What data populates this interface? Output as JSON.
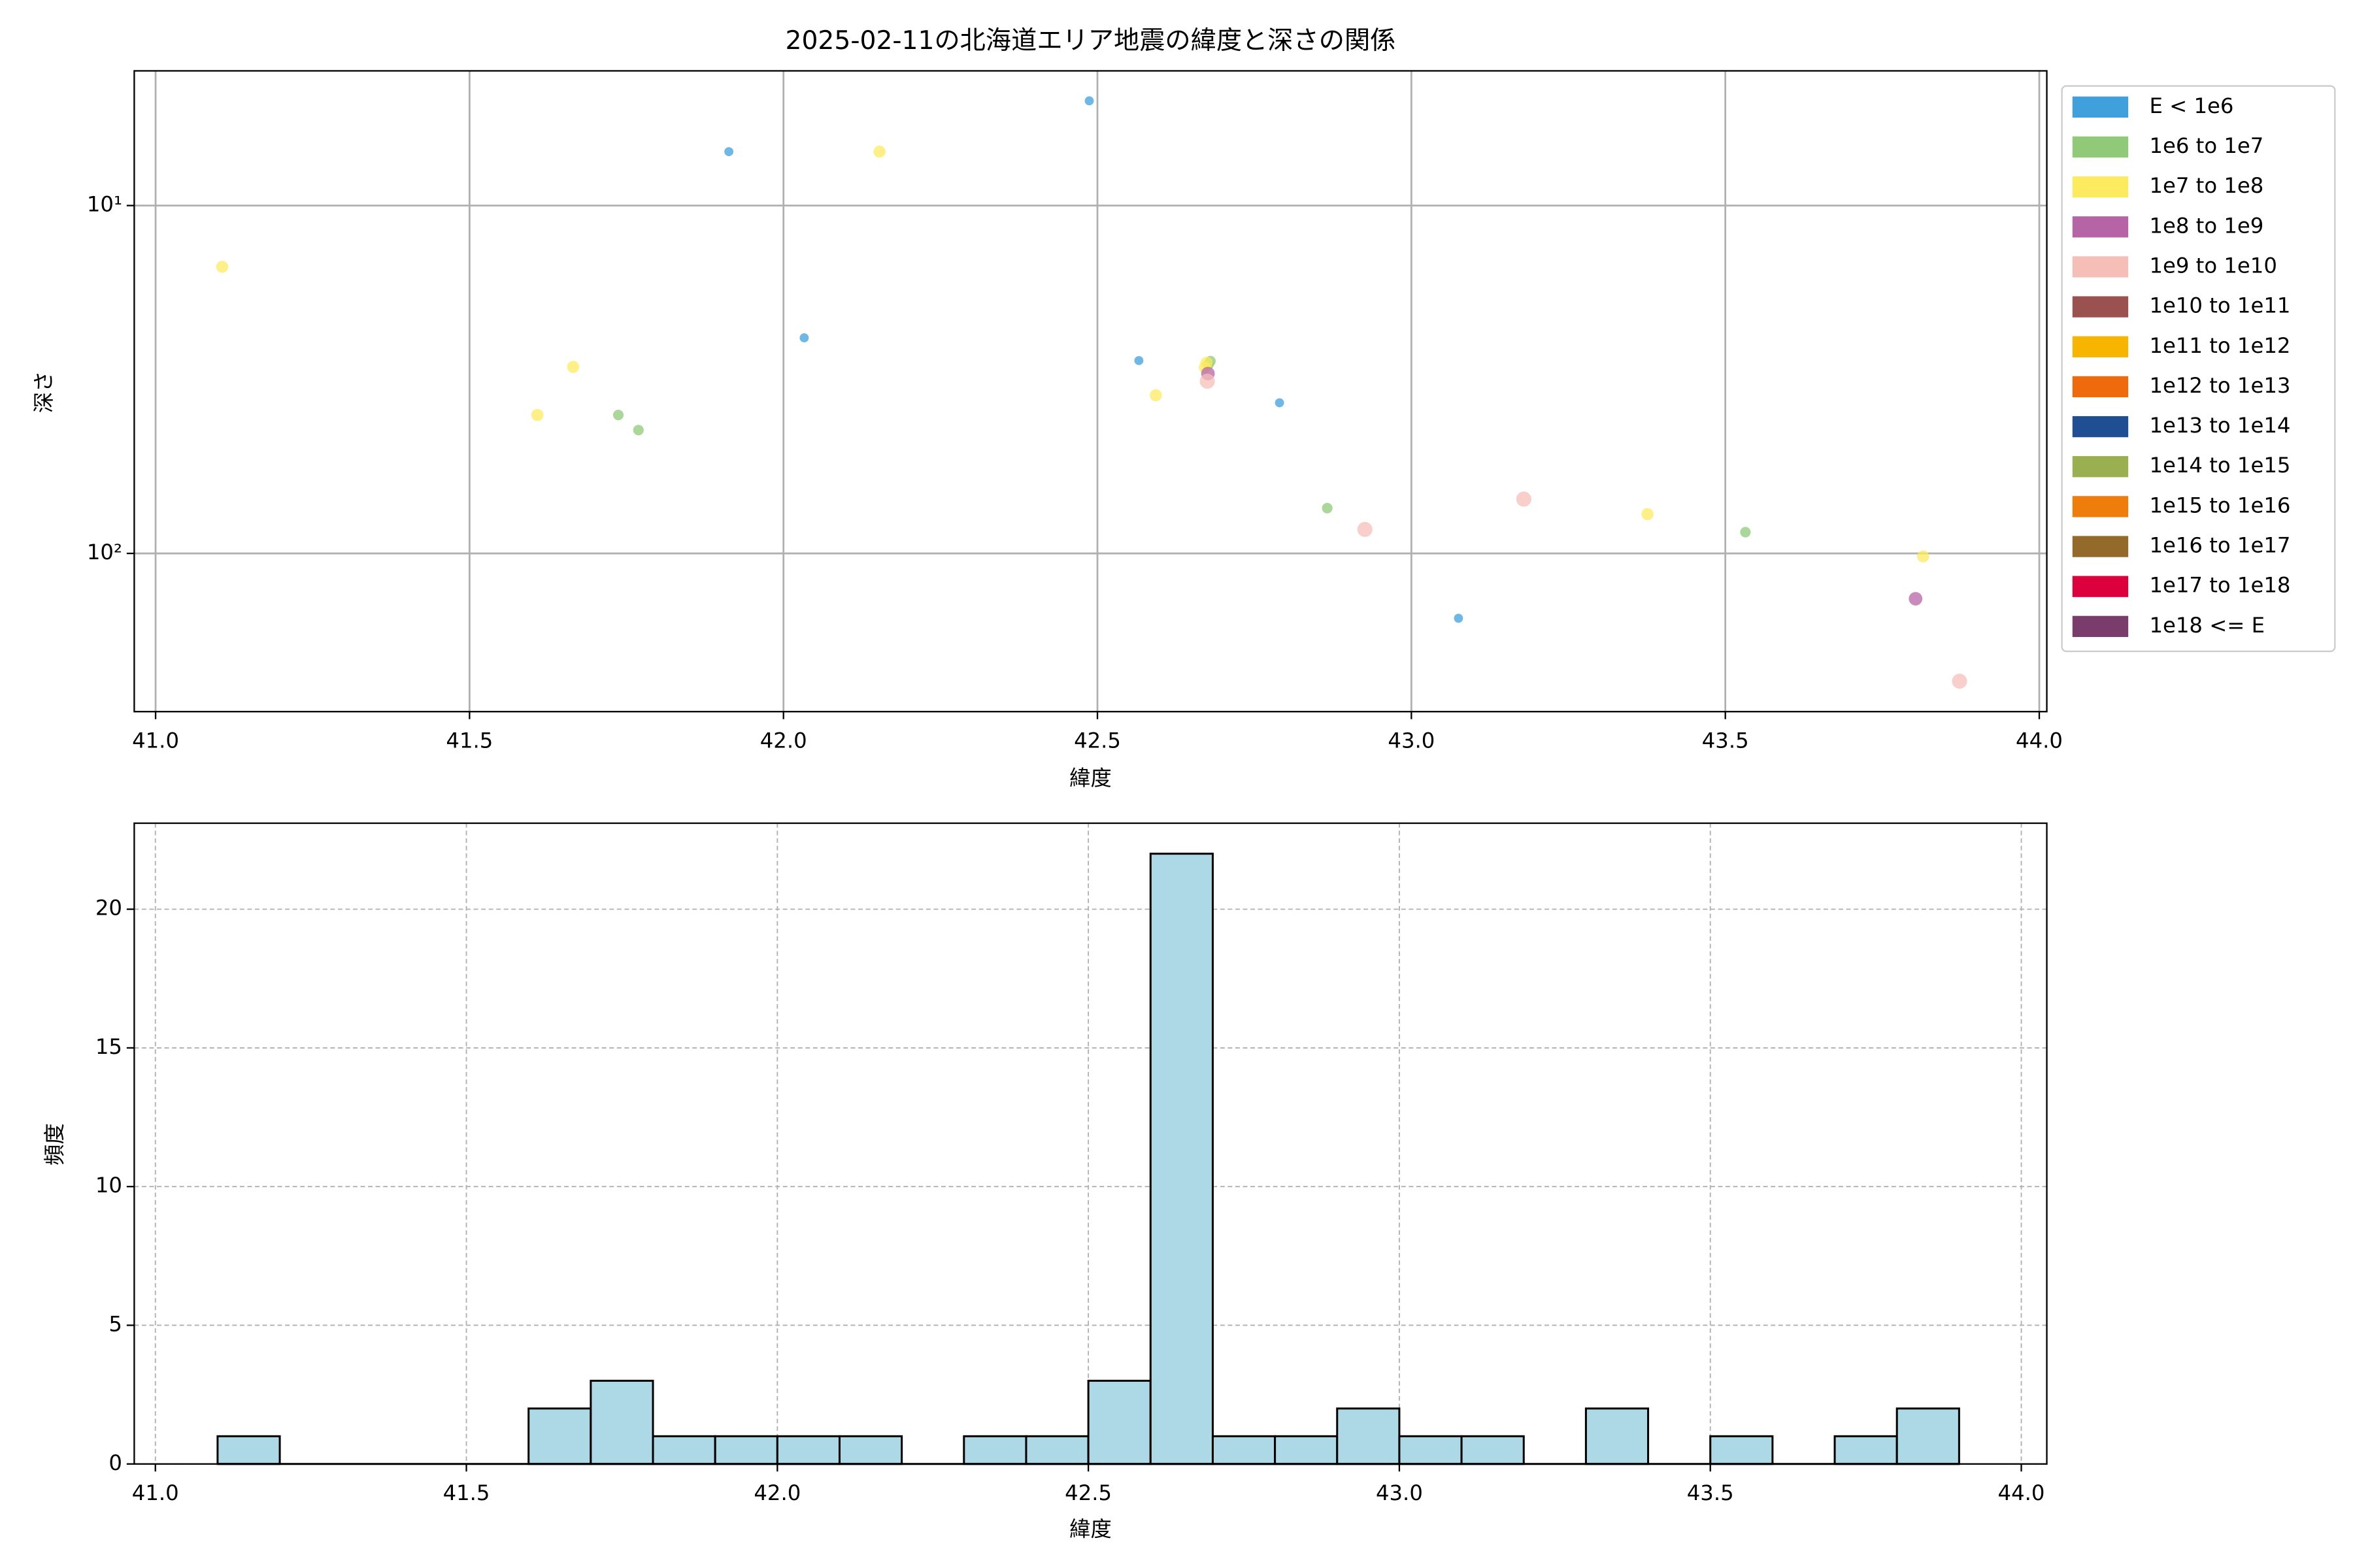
{
  "chart_data": [
    {
      "type": "scatter",
      "title": "2025-02-11の北海道エリア地震の緯度と深さの関係",
      "xlabel": "緯度",
      "ylabel": "深さ",
      "xlim": [
        40.966,
        44.012
      ],
      "xticks": [
        {
          "value": 41,
          "label": "41.0"
        },
        {
          "value": 41.5,
          "label": "41.5"
        },
        {
          "value": 42,
          "label": "42.0"
        },
        {
          "value": 42.5,
          "label": "42.5"
        },
        {
          "value": 43,
          "label": "43.0"
        },
        {
          "value": 43.5,
          "label": "43.5"
        },
        {
          "value": 44,
          "label": "44.0"
        }
      ],
      "ylim": [
        4.1,
        285
      ],
      "y_inverted": true,
      "log_y": true,
      "yticks": [
        {
          "value": 10,
          "label": "10¹"
        },
        {
          "value": 100,
          "label": "10²"
        }
      ],
      "grid": true,
      "legend": "outside right",
      "series": [
        {
          "name": "E < 1e6",
          "color": "#3fa0dc",
          "x": [
            41.913,
            42.487,
            42.033,
            42.566,
            42.79,
            43.075
          ],
          "values": [
            7.0,
            5.0,
            24.0,
            27.9,
            36.9,
            153.6
          ]
        },
        {
          "name": "1e6 to 1e7",
          "color": "#90c978",
          "x": [
            41.737,
            41.769,
            42.866,
            43.532,
            42.68,
            42.677
          ],
          "values": [
            40.0,
            44.2,
            74.1,
            86.9,
            28.0,
            28.6
          ]
        },
        {
          "name": "1e7 to 1e8",
          "color": "#fdeb5f",
          "x": [
            41.106,
            42.153,
            41.665,
            41.608,
            42.593,
            43.376,
            43.815,
            42.671,
            42.674
          ],
          "values": [
            15.0,
            7.0,
            29.1,
            40.0,
            35.1,
            77.1,
            102,
            29.2,
            28.3
          ]
        },
        {
          "name": "1e8 to 1e9",
          "color": "#b764a6",
          "x": [
            43.803,
            42.676
          ],
          "values": [
            135,
            30.4
          ]
        },
        {
          "name": "1e9 to 1e10",
          "color": "#f5bfb8",
          "x": [
            42.926,
            43.179,
            43.873,
            42.675
          ],
          "values": [
            85.3,
            69.8,
            233,
            32.0
          ]
        },
        {
          "name": "1e10 to 1e11",
          "color": "#9a5150",
          "x": [],
          "values": []
        },
        {
          "name": "1e11 to 1e12",
          "color": "#f7b500",
          "x": [],
          "values": []
        },
        {
          "name": "1e12 to 1e13",
          "color": "#ee6a0c",
          "x": [],
          "values": []
        },
        {
          "name": "1e13 to 1e14",
          "color": "#1f4e93",
          "x": [],
          "values": []
        },
        {
          "name": "1e14 to 1e15",
          "color": "#9aaf50",
          "x": [],
          "values": []
        },
        {
          "name": "1e15 to 1e16",
          "color": "#ee7d0c",
          "x": [],
          "values": []
        },
        {
          "name": "1e16 to 1e17",
          "color": "#936a2a",
          "x": [],
          "values": []
        },
        {
          "name": "1e17 to 1e18",
          "color": "#dc003c",
          "x": [],
          "values": []
        },
        {
          "name": "1e18 <= E",
          "color": "#7a3d6b",
          "x": [],
          "values": []
        }
      ]
    },
    {
      "type": "histogram",
      "xlabel": "緯度",
      "ylabel": "頻度",
      "color": "#add8e6",
      "bins": [
        41.1,
        41.2,
        41.3,
        41.4,
        41.5,
        41.6,
        41.7,
        41.8,
        41.9,
        42.0,
        42.1,
        42.2,
        42.3,
        42.4,
        42.5,
        42.6,
        42.7,
        42.8,
        42.9,
        43.0,
        43.1,
        43.2,
        43.3,
        43.4,
        43.5,
        43.6,
        43.7,
        43.8,
        43.9
      ],
      "values": [
        1,
        0,
        0,
        0,
        0,
        2,
        3,
        1,
        1,
        1,
        1,
        0,
        1,
        1,
        3,
        22,
        1,
        1,
        2,
        1,
        1,
        0,
        2,
        0,
        1,
        0,
        1,
        2
      ],
      "xlim": [
        40.966,
        44.041
      ],
      "xticks": [
        {
          "value": 41,
          "label": "41.0"
        },
        {
          "value": 41.5,
          "label": "41.5"
        },
        {
          "value": 42,
          "label": "42.0"
        },
        {
          "value": 42.5,
          "label": "42.5"
        },
        {
          "value": 43,
          "label": "43.0"
        },
        {
          "value": 43.5,
          "label": "43.5"
        },
        {
          "value": 44,
          "label": "44.0"
        }
      ],
      "ylim": [
        0,
        23.1
      ],
      "yticks": [
        0,
        5,
        10,
        15,
        20
      ],
      "grid": true
    }
  ]
}
